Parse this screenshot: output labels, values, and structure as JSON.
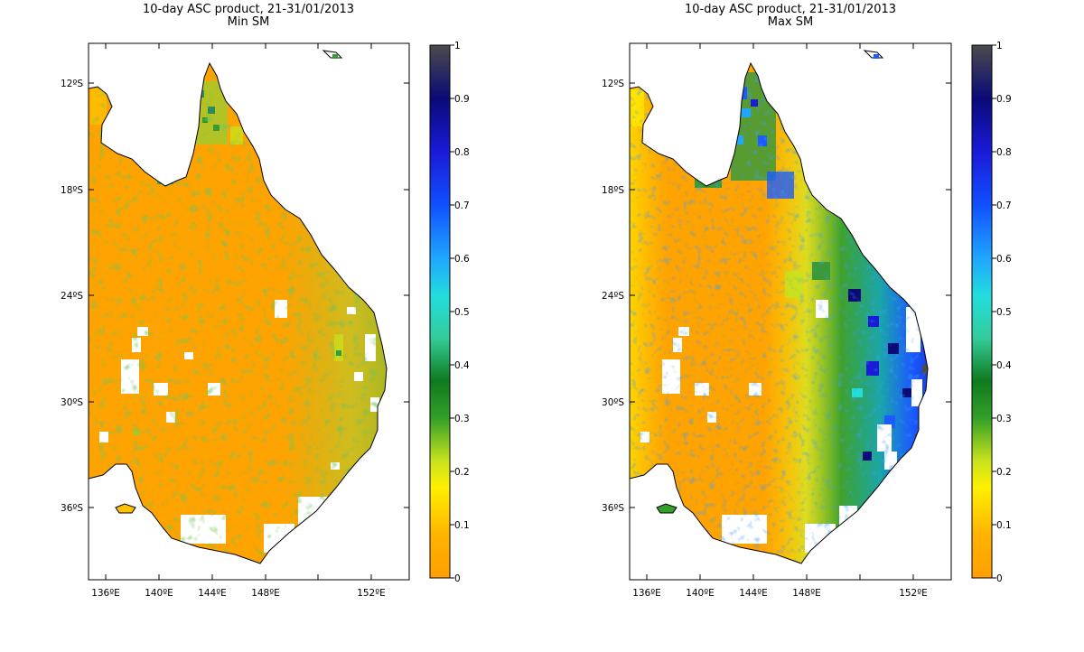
{
  "colors": {
    "colormap_stops": [
      "#ff9f00",
      "#ffb300",
      "#fff000",
      "#c8e21e",
      "#32a028",
      "#0f7a1e",
      "#33cc99",
      "#22dddd",
      "#1fa6ff",
      "#1050ff",
      "#1a1ad8",
      "#0a0a78",
      "#4b4b4b"
    ],
    "ocean": "#ffffff",
    "nodata": "#ffffff",
    "coast": "#000000"
  },
  "panels": [
    {
      "title_line1": "10-day ASC product, 21-31/01/2013",
      "title_line2": "Min SM",
      "lat_labels": [
        "12ºS",
        "18ºS",
        "24ºS",
        "30ºS",
        "36ºS"
      ],
      "lon_labels": [
        "136ºE",
        "140ºE",
        "144ºE",
        "148ºE",
        "152ºE"
      ],
      "colorbar_ticks": [
        "0",
        "0.1",
        "0.2",
        "0.3",
        "0.4",
        "0.5",
        "0.6",
        "0.7",
        "0.8",
        "0.9",
        "1"
      ]
    },
    {
      "title_line1": "10-day ASC product, 21-31/01/2013",
      "title_line2": "Max SM",
      "lat_labels": [
        "12ºS",
        "18ºS",
        "24ºS",
        "30ºS",
        "36ºS"
      ],
      "lon_labels": [
        "136ºE",
        "140ºE",
        "144ºE",
        "148ºE",
        "152ºE"
      ],
      "colorbar_ticks": [
        "0",
        "0.1",
        "0.2",
        "0.3",
        "0.4",
        "0.5",
        "0.6",
        "0.7",
        "0.8",
        "0.9",
        "1"
      ]
    }
  ]
}
